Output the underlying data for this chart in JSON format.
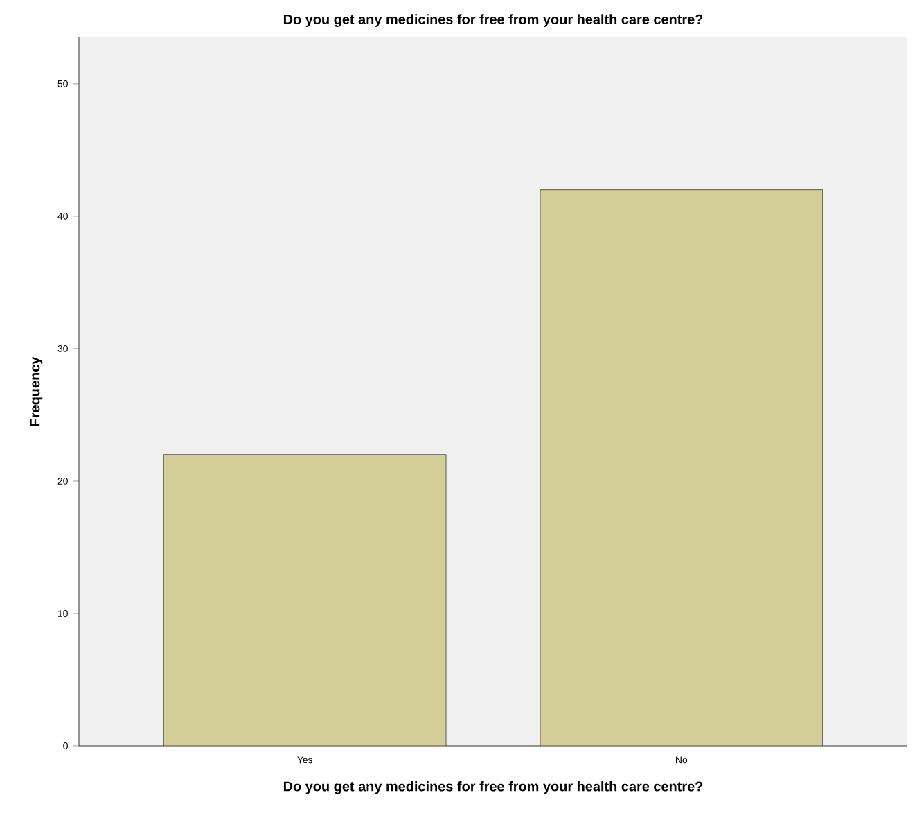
{
  "chart_data": {
    "type": "bar",
    "title": "Do you get any medicines for free from your health care centre?",
    "xlabel": "Do you get any medicines for free from your health care centre?",
    "ylabel": "Frequency",
    "categories": [
      "Yes",
      "No"
    ],
    "values": [
      22,
      42
    ],
    "color": "#d3ce97",
    "ylim": [
      0,
      53.5
    ],
    "yticks": [
      0,
      10,
      20,
      30,
      40,
      50
    ]
  }
}
